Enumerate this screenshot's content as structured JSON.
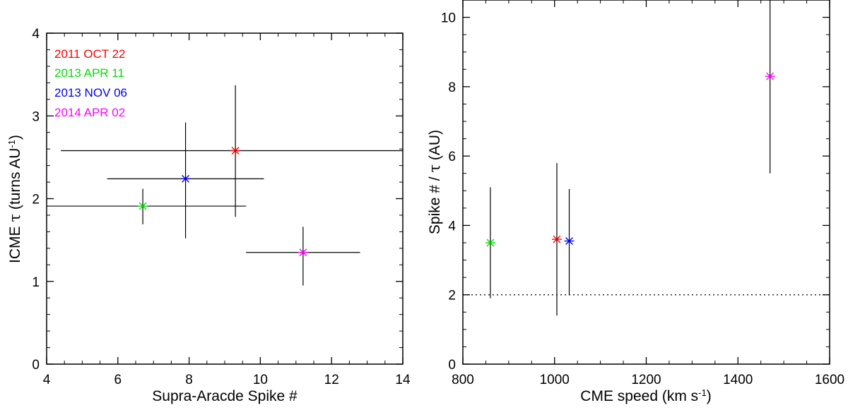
{
  "chart_data": [
    {
      "type": "scatter",
      "title": "",
      "xlabel": "Supra-Aracde Spike #",
      "ylabel": {
        "prefix": "ICME ",
        "tau": "τ",
        "rest": " (turns AU",
        "sup": "-1",
        "close": ")"
      },
      "xlim": [
        4,
        14
      ],
      "ylim": [
        0,
        4
      ],
      "xticks": [
        4,
        6,
        8,
        10,
        12,
        14
      ],
      "yticks": [
        0,
        1,
        2,
        3,
        4
      ],
      "legend_placement": "top-left",
      "series": [
        {
          "name": "2011 OCT 22",
          "color": "#ff0000",
          "x": 9.3,
          "y": 2.58,
          "xerr": [
            4.4,
            14.2
          ],
          "yerr": [
            1.78,
            3.37
          ]
        },
        {
          "name": "2013 APR 11",
          "color": "#00e000",
          "x": 6.7,
          "y": 1.91,
          "xerr": [
            4.0,
            9.6
          ],
          "yerr": [
            1.69,
            2.12
          ]
        },
        {
          "name": "2013 NOV 06",
          "color": "#0000ff",
          "x": 7.9,
          "y": 2.24,
          "xerr": [
            5.7,
            10.1
          ],
          "yerr": [
            1.52,
            2.92
          ]
        },
        {
          "name": "2014 APR 02",
          "color": "#ff00ff",
          "x": 11.2,
          "y": 1.35,
          "xerr": [
            9.6,
            12.8
          ],
          "yerr": [
            0.95,
            1.66
          ]
        }
      ]
    },
    {
      "type": "scatter",
      "title": "",
      "xlabel": {
        "text": "CME speed (km s",
        "sup": "-1",
        "close": ")"
      },
      "ylabel": {
        "prefix": "Spike # / ",
        "tau": "τ",
        "rest": " (AU)"
      },
      "xlim": [
        800,
        1600
      ],
      "ylim": [
        0,
        10.5
      ],
      "xticks": [
        800,
        1000,
        1200,
        1400,
        1600
      ],
      "yticks": [
        0,
        2,
        4,
        6,
        8,
        10
      ],
      "reference_line": {
        "y": 2,
        "style": "dotted"
      },
      "series": [
        {
          "name": "2011 OCT 22",
          "color": "#ff0000",
          "x": 1005,
          "y": 3.6,
          "yerr": [
            1.4,
            5.8
          ]
        },
        {
          "name": "2013 APR 11",
          "color": "#00e000",
          "x": 860,
          "y": 3.5,
          "yerr": [
            1.9,
            5.1
          ]
        },
        {
          "name": "2013 NOV 06",
          "color": "#0000ff",
          "x": 1032,
          "y": 3.55,
          "yerr": [
            2.0,
            5.05
          ]
        },
        {
          "name": "2014 APR 02",
          "color": "#ff00ff",
          "x": 1470,
          "y": 8.3,
          "yerr": [
            5.5,
            11.0
          ]
        }
      ]
    }
  ]
}
